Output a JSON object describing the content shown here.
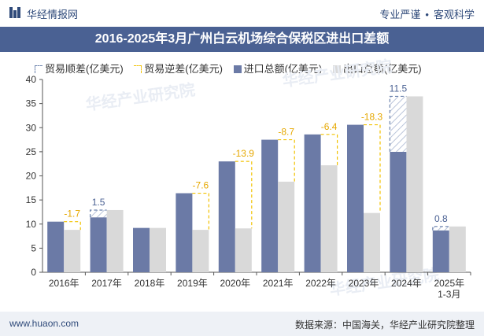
{
  "header": {
    "brand": "华经情报网",
    "tags": [
      "专业严谨",
      "客观科学"
    ]
  },
  "title": "2016-2025年3月广州白云机场综合保税区进出口差额",
  "legend": {
    "surplus": "贸易顺差(亿美元)",
    "deficit": "贸易逆差(亿美元)",
    "imports": "进口总额(亿美元)",
    "exports": "出口总额(亿美元)"
  },
  "footer": {
    "url": "www.huaon.com",
    "source": "数据来源：中国海关，华经产业研究院整理"
  },
  "watermark": "华经产业研究院",
  "colors": {
    "import": "#6b7aa6",
    "export": "#d9d9d9",
    "surplus_border": "#6b82ad",
    "deficit_border": "#f2c200",
    "deficit_label": "#e6a800",
    "surplus_label": "#4a6193",
    "title_bg": "#4a6193"
  },
  "chart_data": {
    "type": "bar",
    "categories": [
      "2016年",
      "2017年",
      "2018年",
      "2019年",
      "2020年",
      "2021年",
      "2022年",
      "2023年",
      "2024年",
      "2025年\n1-3月"
    ],
    "series": [
      {
        "name": "进口总额(亿美元)",
        "values": [
          10.5,
          11.4,
          9.2,
          16.4,
          23.0,
          27.5,
          28.6,
          30.6,
          25.0,
          8.7
        ]
      },
      {
        "name": "出口总额(亿美元)",
        "values": [
          8.8,
          12.9,
          9.2,
          8.8,
          9.1,
          18.8,
          22.2,
          12.3,
          36.5,
          9.5
        ]
      }
    ],
    "balance": {
      "values": [
        -1.7,
        1.5,
        0,
        -7.6,
        -13.9,
        -8.7,
        -6.4,
        -18.3,
        11.5,
        0.8
      ],
      "labels": [
        "-1.7",
        "1.5",
        "",
        "-7.6",
        "-13.9",
        "-8.7",
        "-6.4",
        "-18.3",
        "11.5",
        "0.8"
      ]
    },
    "ylim": [
      0,
      40
    ],
    "yticks": [
      0,
      5,
      10,
      15,
      20,
      25,
      30,
      35,
      40
    ],
    "grid": false,
    "legend_position": "top"
  }
}
